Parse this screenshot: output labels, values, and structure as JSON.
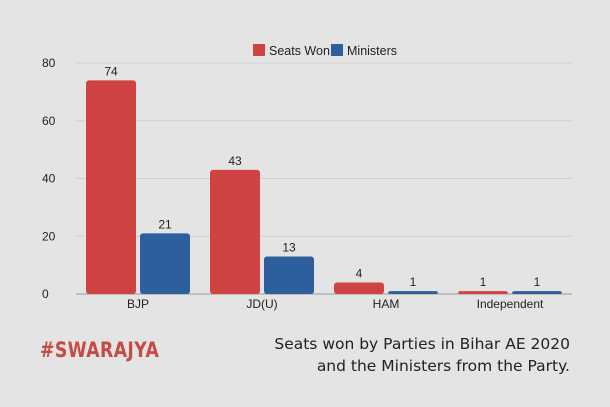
{
  "chart_data": {
    "type": "bar",
    "categories": [
      "BJP",
      "JD(U)",
      "HAM",
      "Independent"
    ],
    "series": [
      {
        "name": "Seats Won",
        "values": [
          74,
          43,
          4,
          1
        ],
        "color": "#d04343"
      },
      {
        "name": "Ministers",
        "values": [
          21,
          13,
          1,
          1
        ],
        "color": "#2d5e9e"
      }
    ],
    "ylim": [
      0,
      80
    ],
    "yticks": [
      0,
      20,
      40,
      60,
      80
    ],
    "grid": true,
    "legend": "top-center",
    "title": "",
    "xlabel": "",
    "ylabel": ""
  },
  "caption": {
    "line1": "Seats won by Parties in Bihar AE 2020",
    "line2": "and the Ministers from the Party."
  },
  "brand": "#SWARAJYA"
}
